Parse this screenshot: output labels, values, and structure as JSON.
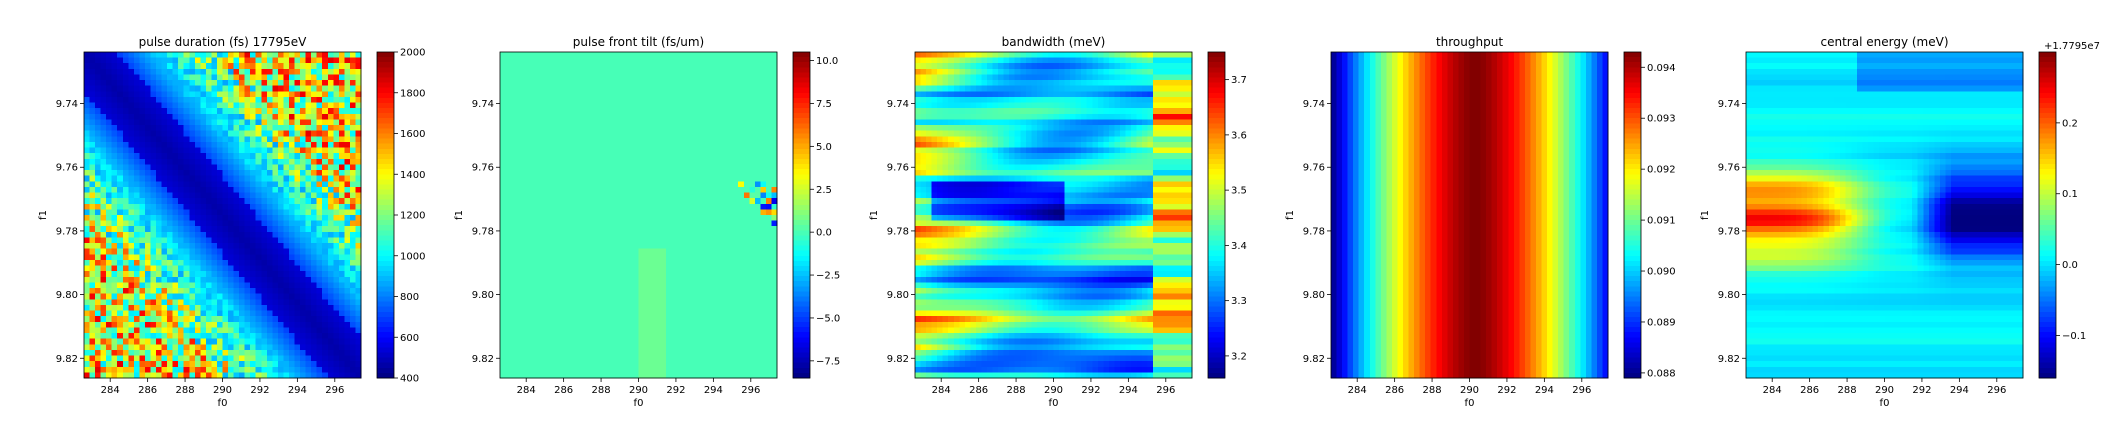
{
  "figure": {
    "colormap": "jet",
    "colormap_stops": [
      "#00007f",
      "#0000ff",
      "#007fff",
      "#00ffff",
      "#7fff7f",
      "#ffff00",
      "#ff7f00",
      "#ff0000",
      "#7f0000"
    ]
  },
  "chart_data": [
    {
      "type": "heatmap",
      "title": "pulse duration (fs) 17795eV",
      "xlabel": "f0",
      "ylabel": "f1",
      "xlim": [
        282.6,
        297.4
      ],
      "ylim": [
        9.8262,
        9.7238
      ],
      "x_ticks": [
        284,
        286,
        288,
        290,
        292,
        294,
        296
      ],
      "x_tick_labels": [
        "284",
        "286",
        "288",
        "290",
        "292",
        "294",
        "296"
      ],
      "y_ticks": [
        9.74,
        9.76,
        9.78,
        9.8,
        9.82
      ],
      "y_tick_labels": [
        "9.74",
        "9.76",
        "9.78",
        "9.80",
        "9.82"
      ],
      "colorbar": {
        "vmin": 400,
        "vmax": 2000,
        "ticks": [
          400,
          600,
          800,
          1000,
          1200,
          1400,
          1600,
          1800,
          2000
        ],
        "tick_labels": [
          "400",
          "600",
          "800",
          "1000",
          "1200",
          "1400",
          "1600",
          "1800",
          "2000"
        ],
        "offset_label": ""
      },
      "grid": {
        "nx": 50,
        "ny": 58
      },
      "pattern": "pulse_duration"
    },
    {
      "type": "heatmap",
      "title": "pulse front tilt (fs/um)",
      "xlabel": "f0",
      "ylabel": "f1",
      "xlim": [
        282.6,
        297.4
      ],
      "ylim": [
        9.8262,
        9.7238
      ],
      "x_ticks": [
        284,
        286,
        288,
        290,
        292,
        294,
        296
      ],
      "x_tick_labels": [
        "284",
        "286",
        "288",
        "290",
        "292",
        "294",
        "296"
      ],
      "y_ticks": [
        9.74,
        9.76,
        9.78,
        9.8,
        9.82
      ],
      "y_tick_labels": [
        "9.74",
        "9.76",
        "9.78",
        "9.80",
        "9.82"
      ],
      "colorbar": {
        "vmin": -8.5,
        "vmax": 10.5,
        "ticks": [
          -7.5,
          -5.0,
          -2.5,
          0.0,
          2.5,
          5.0,
          7.5,
          10.0
        ],
        "tick_labels": [
          "−7.5",
          "−5.0",
          "−2.5",
          "0.0",
          "2.5",
          "5.0",
          "7.5",
          "10.0"
        ],
        "offset_label": ""
      },
      "grid": {
        "nx": 50,
        "ny": 58
      },
      "pattern": "pulse_front_tilt"
    },
    {
      "type": "heatmap",
      "title": "bandwidth (meV)",
      "xlabel": "f0",
      "ylabel": "f1",
      "xlim": [
        282.6,
        297.4
      ],
      "ylim": [
        9.8262,
        9.7238
      ],
      "x_ticks": [
        284,
        286,
        288,
        290,
        292,
        294,
        296
      ],
      "x_tick_labels": [
        "284",
        "286",
        "288",
        "290",
        "292",
        "294",
        "296"
      ],
      "y_ticks": [
        9.74,
        9.76,
        9.78,
        9.8,
        9.82
      ],
      "y_tick_labels": [
        "9.74",
        "9.76",
        "9.78",
        "9.80",
        "9.82"
      ],
      "colorbar": {
        "vmin": 3.16,
        "vmax": 3.75,
        "ticks": [
          3.2,
          3.3,
          3.4,
          3.5,
          3.6,
          3.7
        ],
        "tick_labels": [
          "3.2",
          "3.3",
          "3.4",
          "3.5",
          "3.6",
          "3.7"
        ],
        "offset_label": ""
      },
      "grid": {
        "nx": 50,
        "ny": 58
      },
      "pattern": "bandwidth"
    },
    {
      "type": "heatmap",
      "title": "throughput",
      "xlabel": "f0",
      "ylabel": "f1",
      "xlim": [
        282.6,
        297.4
      ],
      "ylim": [
        9.8262,
        9.7238
      ],
      "x_ticks": [
        284,
        286,
        288,
        290,
        292,
        294,
        296
      ],
      "x_tick_labels": [
        "284",
        "286",
        "288",
        "290",
        "292",
        "294",
        "296"
      ],
      "y_ticks": [
        9.74,
        9.76,
        9.78,
        9.8,
        9.82
      ],
      "y_tick_labels": [
        "9.74",
        "9.76",
        "9.78",
        "9.80",
        "9.82"
      ],
      "colorbar": {
        "vmin": 0.0879,
        "vmax": 0.0943,
        "ticks": [
          0.088,
          0.089,
          0.09,
          0.091,
          0.092,
          0.093,
          0.094
        ],
        "tick_labels": [
          "0.088",
          "0.089",
          "0.090",
          "0.091",
          "0.092",
          "0.093",
          "0.094"
        ],
        "offset_label": ""
      },
      "grid": {
        "nx": 50,
        "ny": 58
      },
      "pattern": "throughput"
    },
    {
      "type": "heatmap",
      "title": "central energy (meV)",
      "xlabel": "f0",
      "ylabel": "f1",
      "xlim": [
        282.6,
        297.4
      ],
      "ylim": [
        9.8262,
        9.7238
      ],
      "x_ticks": [
        284,
        286,
        288,
        290,
        292,
        294,
        296
      ],
      "x_tick_labels": [
        "284",
        "286",
        "288",
        "290",
        "292",
        "294",
        "296"
      ],
      "y_ticks": [
        9.74,
        9.76,
        9.78,
        9.8,
        9.82
      ],
      "y_tick_labels": [
        "9.74",
        "9.76",
        "9.78",
        "9.80",
        "9.82"
      ],
      "colorbar": {
        "vmin": -0.16,
        "vmax": 0.3,
        "ticks": [
          -0.1,
          0.0,
          0.1,
          0.2
        ],
        "tick_labels": [
          "−0.1",
          "0.0",
          "0.1",
          "0.2"
        ],
        "offset_label": "+1.7795e7"
      },
      "grid": {
        "nx": 50,
        "ny": 58
      },
      "pattern": "central_energy"
    }
  ]
}
